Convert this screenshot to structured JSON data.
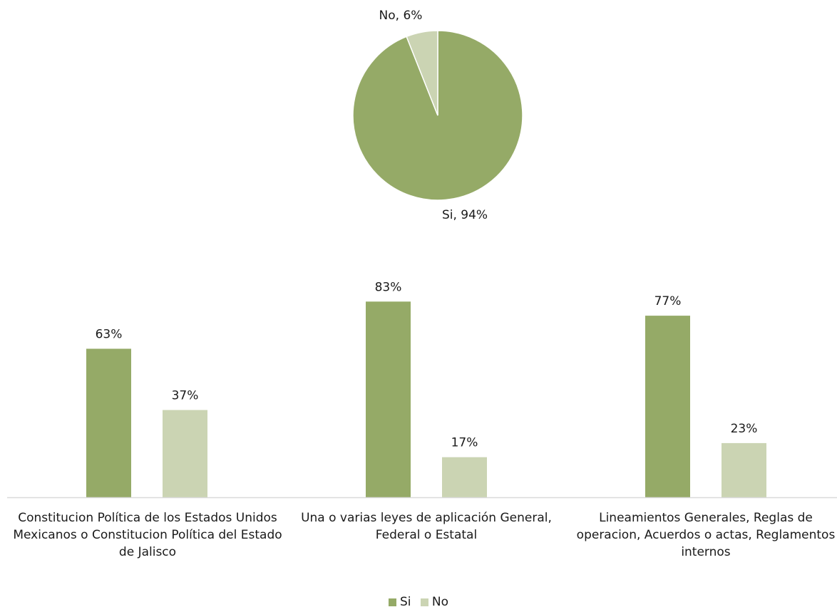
{
  "colors": {
    "si": "#95aa67",
    "no": "#cbd4b3",
    "axis": "#d9d9d9"
  },
  "chart_data": [
    {
      "type": "pie",
      "slices": [
        {
          "name": "Si",
          "value": 94,
          "label": "Si, 94%"
        },
        {
          "name": "No",
          "value": 6,
          "label": "No, 6%"
        }
      ]
    },
    {
      "type": "bar",
      "categories": [
        "Constitucion Política de los Estados Unidos Mexicanos o Constitucion Política del Estado de Jalisco",
        "Una o varias leyes de aplicación General, Federal o Estatal",
        "Lineamientos Generales, Reglas de operacion, Acuerdos o actas, Reglamentos internos"
      ],
      "series": [
        {
          "name": "Si",
          "values": [
            63,
            83,
            77
          ],
          "labels": [
            "63%",
            "83%",
            "77%"
          ]
        },
        {
          "name": "No",
          "values": [
            37,
            17,
            23
          ],
          "labels": [
            "37%",
            "17%",
            "23%"
          ]
        }
      ],
      "ylim": [
        0,
        100
      ],
      "legend": "bottom"
    }
  ],
  "category_labels": [
    [
      "Constitucion Política de los Estados Unidos",
      "Mexicanos o Constitucion Política del Estado",
      "de Jalisco"
    ],
    [
      "Una o varias leyes de aplicación General,",
      "Federal o Estatal"
    ],
    [
      "Lineamientos Generales, Reglas de",
      "operacion, Acuerdos o actas, Reglamentos",
      "internos"
    ]
  ],
  "legend": {
    "items": [
      "Si",
      "No"
    ]
  }
}
